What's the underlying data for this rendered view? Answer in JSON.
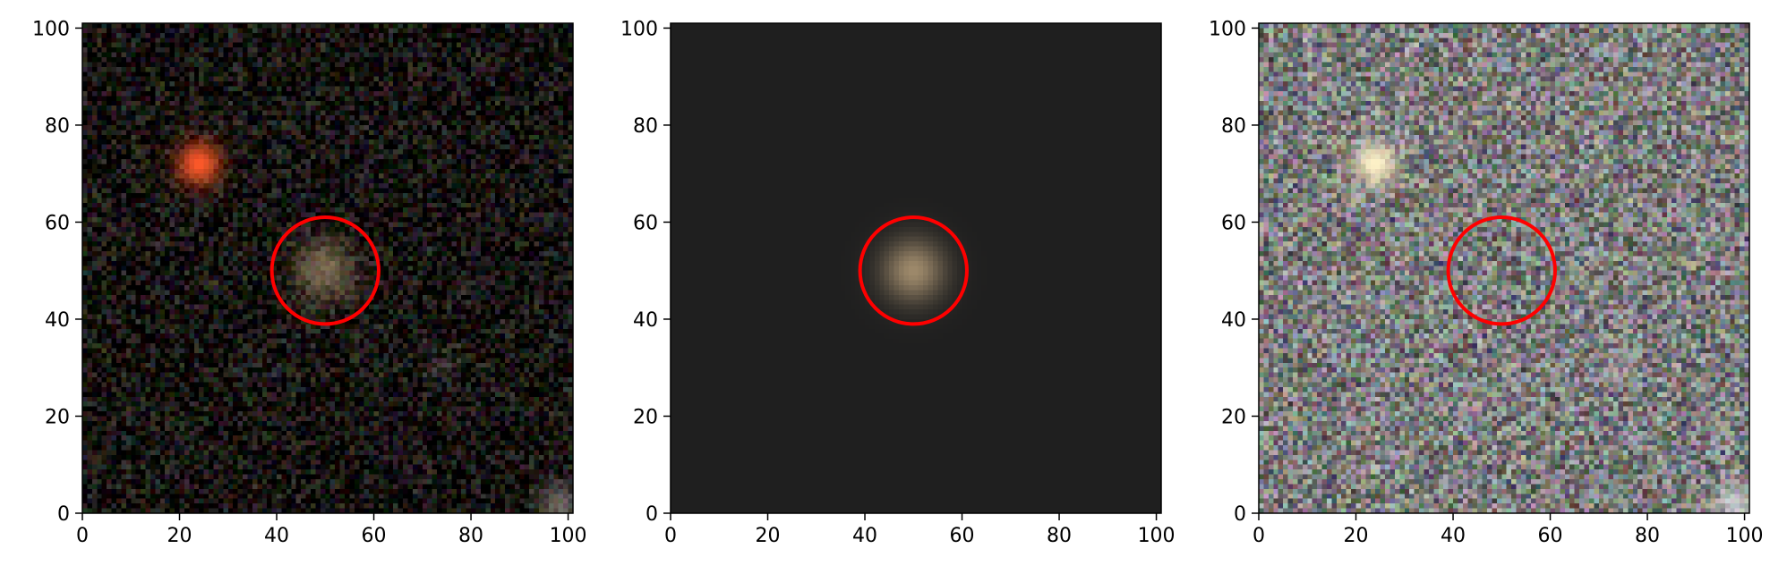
{
  "figure": {
    "panels": [
      {
        "id": "observed",
        "description_kind": "noisy-sky-image",
        "background": "#15120f",
        "noise_amplitude": 0.35,
        "sources": [
          {
            "x": 24,
            "y": 72,
            "sigma": 3.2,
            "peak": 1.0,
            "color": "#ff5a2a"
          },
          {
            "x": 50,
            "y": 50,
            "sigma": 4.5,
            "peak": 0.55,
            "color": "#c9ad86"
          },
          {
            "x": 74,
            "y": 30,
            "sigma": 2.5,
            "peak": 0.2,
            "color": "#8a8a9a"
          },
          {
            "x": 98,
            "y": 2,
            "sigma": 3,
            "peak": 0.45,
            "color": "#d6d0c6"
          }
        ],
        "marker": {
          "x": 50,
          "y": 50,
          "radius": 11,
          "color": "#ff0000"
        }
      },
      {
        "id": "model",
        "description_kind": "model-image",
        "background": "#1f1f1f",
        "noise_amplitude": 0,
        "sources": [
          {
            "x": 50,
            "y": 50,
            "sigma": 4.5,
            "peak": 0.75,
            "color": "#c8ad84"
          }
        ],
        "marker": {
          "x": 50,
          "y": 50,
          "radius": 11,
          "color": "#ff0000"
        }
      },
      {
        "id": "residual",
        "description_kind": "residual-image",
        "background": "#7c7c7c",
        "noise_amplitude": 0.55,
        "sources": [
          {
            "x": 24,
            "y": 72,
            "sigma": 3.2,
            "peak": 1.0,
            "color": "#fff2c8"
          },
          {
            "x": 74,
            "y": 30,
            "sigma": 2.5,
            "peak": 0.3,
            "color": "#d8d8ea"
          },
          {
            "x": 98,
            "y": 2,
            "sigma": 3,
            "peak": 0.6,
            "color": "#ffffff"
          }
        ],
        "marker": {
          "x": 50,
          "y": 50,
          "radius": 11,
          "color": "#ff0000"
        }
      }
    ],
    "axes": {
      "xlim": [
        0,
        101
      ],
      "ylim": [
        0,
        101
      ],
      "xticks": [
        0,
        20,
        40,
        60,
        80,
        100
      ],
      "yticks": [
        0,
        20,
        40,
        60,
        80,
        100
      ],
      "xtick_labels": [
        "0",
        "20",
        "40",
        "60",
        "80",
        "100"
      ],
      "ytick_labels": [
        "0",
        "20",
        "40",
        "60",
        "80",
        "100"
      ]
    }
  }
}
